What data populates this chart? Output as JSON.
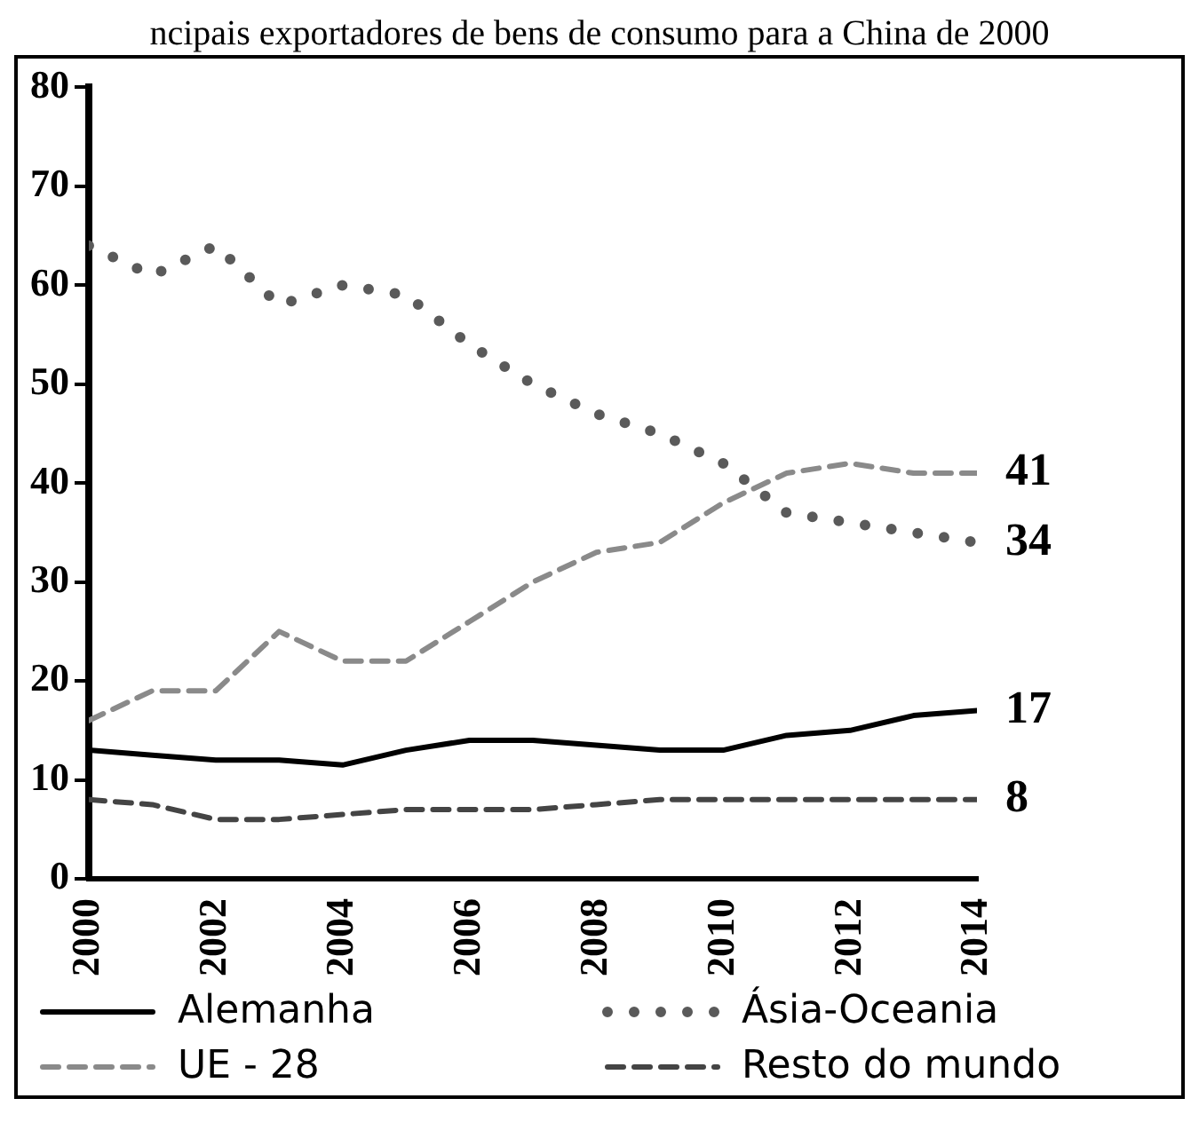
{
  "chart_data": {
    "type": "line",
    "title": "ncipais exportadores de bens de consumo para a China de 2000",
    "x": [
      2000,
      2001,
      2002,
      2003,
      2004,
      2005,
      2006,
      2007,
      2008,
      2009,
      2010,
      2011,
      2012,
      2013,
      2014
    ],
    "series": [
      {
        "name": "Alemanha",
        "color": "#000000",
        "line_style": "solid",
        "values": [
          13,
          12.5,
          12,
          12,
          11.5,
          13,
          14,
          14,
          13.5,
          13,
          13,
          14.5,
          15,
          16.5,
          17
        ],
        "value_labels": [
          null,
          null,
          null,
          null,
          null,
          null,
          null,
          null,
          null,
          null,
          null,
          null,
          null,
          null,
          "17"
        ]
      },
      {
        "name": "Ásia-Oceania",
        "color": "#5a5a5a",
        "line_style": "dotted",
        "values": [
          64,
          61,
          64,
          58,
          60,
          59,
          54,
          50,
          47,
          45,
          42,
          37,
          36,
          35,
          34
        ],
        "value_labels": [
          null,
          null,
          null,
          null,
          null,
          null,
          null,
          null,
          null,
          null,
          null,
          null,
          null,
          null,
          "34"
        ]
      },
      {
        "name": "UE - 28",
        "color": "#8a8a8a",
        "line_style": "dashed",
        "values": [
          16,
          19,
          19,
          25,
          22,
          22,
          26,
          30,
          33,
          34,
          38,
          41,
          42,
          41,
          41
        ],
        "value_labels": [
          null,
          null,
          null,
          null,
          null,
          null,
          null,
          null,
          null,
          null,
          null,
          null,
          null,
          null,
          "41"
        ]
      },
      {
        "name": "Resto do mundo",
        "color": "#444444",
        "line_style": "dashed",
        "values": [
          8,
          7.5,
          6,
          6,
          6.5,
          7,
          7,
          7,
          7.5,
          8,
          8,
          8,
          8,
          8,
          8
        ],
        "value_labels": [
          null,
          null,
          null,
          null,
          null,
          null,
          null,
          null,
          null,
          null,
          null,
          null,
          null,
          null,
          "8"
        ]
      }
    ],
    "xlim": [
      2000,
      2014
    ],
    "xticks": [
      2000,
      2002,
      2004,
      2006,
      2008,
      2010,
      2012,
      2014
    ],
    "ylim": [
      0,
      80
    ],
    "yticks": [
      0,
      10,
      20,
      30,
      40,
      50,
      60,
      70,
      80
    ],
    "grid": false,
    "marker": "none",
    "legend": "bottom"
  }
}
